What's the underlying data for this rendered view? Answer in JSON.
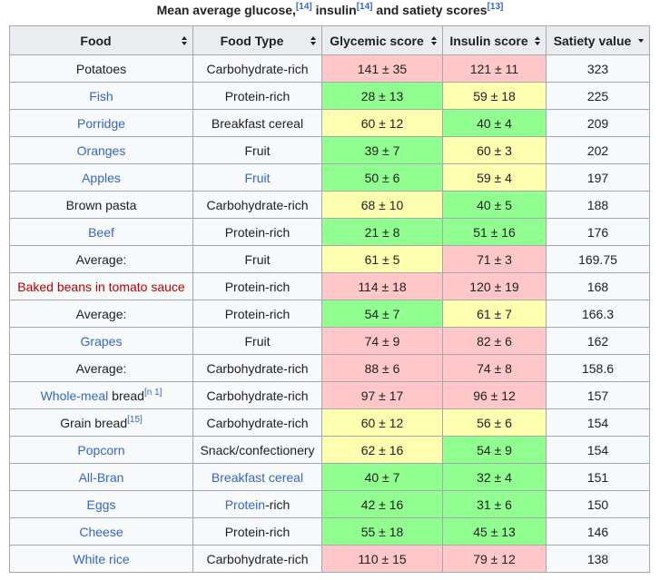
{
  "caption": [
    {
      "t": "Mean average glucose,"
    },
    {
      "t": "[14]",
      "sup": true,
      "link": "#3366cc"
    },
    {
      "t": " insulin"
    },
    {
      "t": "[14]",
      "sup": true,
      "link": "#3366cc"
    },
    {
      "t": " and satiety scores"
    },
    {
      "t": "[13]",
      "sup": true,
      "link": "#3366cc"
    }
  ],
  "headers": [
    "Food",
    "Food Type",
    "Glycemic score",
    "Insulin score",
    "Satiety value"
  ],
  "rows": [
    {
      "food": [
        {
          "t": "Potatoes"
        }
      ],
      "type": [
        {
          "t": "Carbohydrate-rich"
        }
      ],
      "gi": "141 ± 35",
      "gi_color": "#ffc7c7",
      "ii": "121 ± 11",
      "ii_color": "#ffc7c7",
      "satiety": 323
    },
    {
      "food": [
        {
          "t": "Fish",
          "link": "#3366cc"
        }
      ],
      "type": [
        {
          "t": "Protein-rich"
        }
      ],
      "gi": "28 ± 13",
      "gi_color": "#90ff90",
      "ii": "59 ± 18",
      "ii_color": "#ffffb0",
      "satiety": 225
    },
    {
      "food": [
        {
          "t": "Porridge",
          "link": "#3366cc"
        }
      ],
      "type": [
        {
          "t": "Breakfast cereal"
        }
      ],
      "gi": "60 ± 12",
      "gi_color": "#ffffb0",
      "ii": "40 ± 4",
      "ii_color": "#90ff90",
      "satiety": 209
    },
    {
      "food": [
        {
          "t": "Oranges",
          "link": "#3366cc"
        }
      ],
      "type": [
        {
          "t": "Fruit"
        }
      ],
      "gi": "39 ± 7",
      "gi_color": "#90ff90",
      "ii": "60 ± 3",
      "ii_color": "#ffffb0",
      "satiety": 202
    },
    {
      "food": [
        {
          "t": "Apples",
          "link": "#3366cc"
        }
      ],
      "type": [
        {
          "t": "Fruit",
          "link": "#3366cc"
        }
      ],
      "gi": "50 ± 6",
      "gi_color": "#90ff90",
      "ii": "59 ± 4",
      "ii_color": "#ffffb0",
      "satiety": 197
    },
    {
      "food": [
        {
          "t": "Brown pasta"
        }
      ],
      "type": [
        {
          "t": "Carbohydrate-rich"
        }
      ],
      "gi": "68 ± 10",
      "gi_color": "#ffffb0",
      "ii": "40 ± 5",
      "ii_color": "#90ff90",
      "satiety": 188
    },
    {
      "food": [
        {
          "t": "Beef",
          "link": "#3366cc"
        }
      ],
      "type": [
        {
          "t": "Protein-rich"
        }
      ],
      "gi": "21 ± 8",
      "gi_color": "#90ff90",
      "ii": "51 ± 16",
      "ii_color": "#90ff90",
      "satiety": 176
    },
    {
      "food": [
        {
          "t": "Average:"
        }
      ],
      "type": [
        {
          "t": "Fruit"
        }
      ],
      "gi": "61 ± 5",
      "gi_color": "#ffffb0",
      "ii": "71 ± 3",
      "ii_color": "#ffc7c7",
      "satiety": 169.75
    },
    {
      "food": [
        {
          "t": "Baked beans in tomato sauce",
          "link": "#ba0000"
        }
      ],
      "type": [
        {
          "t": "Protein-rich"
        }
      ],
      "gi": "114 ± 18",
      "gi_color": "#ffc7c7",
      "ii": "120 ± 19",
      "ii_color": "#ffc7c7",
      "satiety": 168
    },
    {
      "food": [
        {
          "t": "Average:"
        }
      ],
      "type": [
        {
          "t": "Protein-rich"
        }
      ],
      "gi": "54 ± 7",
      "gi_color": "#90ff90",
      "ii": "61 ± 7",
      "ii_color": "#ffffb0",
      "satiety": 166.3
    },
    {
      "food": [
        {
          "t": "Grapes",
          "link": "#3366cc"
        }
      ],
      "type": [
        {
          "t": "Fruit"
        }
      ],
      "gi": "74 ± 9",
      "gi_color": "#ffc7c7",
      "ii": "82 ± 6",
      "ii_color": "#ffc7c7",
      "satiety": 162
    },
    {
      "food": [
        {
          "t": "Average:"
        }
      ],
      "type": [
        {
          "t": "Carbohydrate-rich"
        }
      ],
      "gi": "88 ± 6",
      "gi_color": "#ffc7c7",
      "ii": "74 ± 8",
      "ii_color": "#ffc7c7",
      "satiety": 158.6
    },
    {
      "food": [
        {
          "t": "Whole-meal",
          "link": "#3366cc"
        },
        {
          "t": " bread"
        },
        {
          "t": "[n 1]",
          "sup": true,
          "link": "#3366cc"
        }
      ],
      "type": [
        {
          "t": "Carbohydrate-rich"
        }
      ],
      "gi": "97 ± 17",
      "gi_color": "#ffc7c7",
      "ii": "96 ± 12",
      "ii_color": "#ffc7c7",
      "satiety": 157
    },
    {
      "food": [
        {
          "t": "Grain bread"
        },
        {
          "t": "[15]",
          "sup": true,
          "link": "#3366cc"
        }
      ],
      "type": [
        {
          "t": "Carbohydrate-rich"
        }
      ],
      "gi": "60 ± 12",
      "gi_color": "#ffffb0",
      "ii": "56 ± 6",
      "ii_color": "#ffffb0",
      "satiety": 154
    },
    {
      "food": [
        {
          "t": "Popcorn",
          "link": "#3366cc"
        }
      ],
      "type": [
        {
          "t": "Snack/confectionery"
        }
      ],
      "gi": "62 ± 16",
      "gi_color": "#ffffb0",
      "ii": "54 ± 9",
      "ii_color": "#90ff90",
      "satiety": 154
    },
    {
      "food": [
        {
          "t": "All-Bran",
          "link": "#3366cc"
        }
      ],
      "type": [
        {
          "t": "Breakfast cereal",
          "link": "#3366cc"
        }
      ],
      "gi": "40 ± 7",
      "gi_color": "#90ff90",
      "ii": "32 ± 4",
      "ii_color": "#90ff90",
      "satiety": 151
    },
    {
      "food": [
        {
          "t": "Eggs",
          "link": "#3366cc"
        }
      ],
      "type": [
        {
          "t": "Protein",
          "link": "#3366cc"
        },
        {
          "t": "-rich"
        }
      ],
      "gi": "42 ± 16",
      "gi_color": "#90ff90",
      "ii": "31 ± 6",
      "ii_color": "#90ff90",
      "satiety": 150
    },
    {
      "food": [
        {
          "t": "Cheese",
          "link": "#3366cc"
        }
      ],
      "type": [
        {
          "t": "Protein-rich"
        }
      ],
      "gi": "55 ± 18",
      "gi_color": "#90ff90",
      "ii": "45 ± 13",
      "ii_color": "#90ff90",
      "satiety": 146
    },
    {
      "food": [
        {
          "t": "White rice",
          "link": "#3366cc"
        }
      ],
      "type": [
        {
          "t": "Carbohydrate-rich"
        }
      ],
      "gi": "110 ± 15",
      "gi_color": "#ffc7c7",
      "ii": "79 ± 12",
      "ii_color": "#ffc7c7",
      "satiety": 138
    }
  ]
}
